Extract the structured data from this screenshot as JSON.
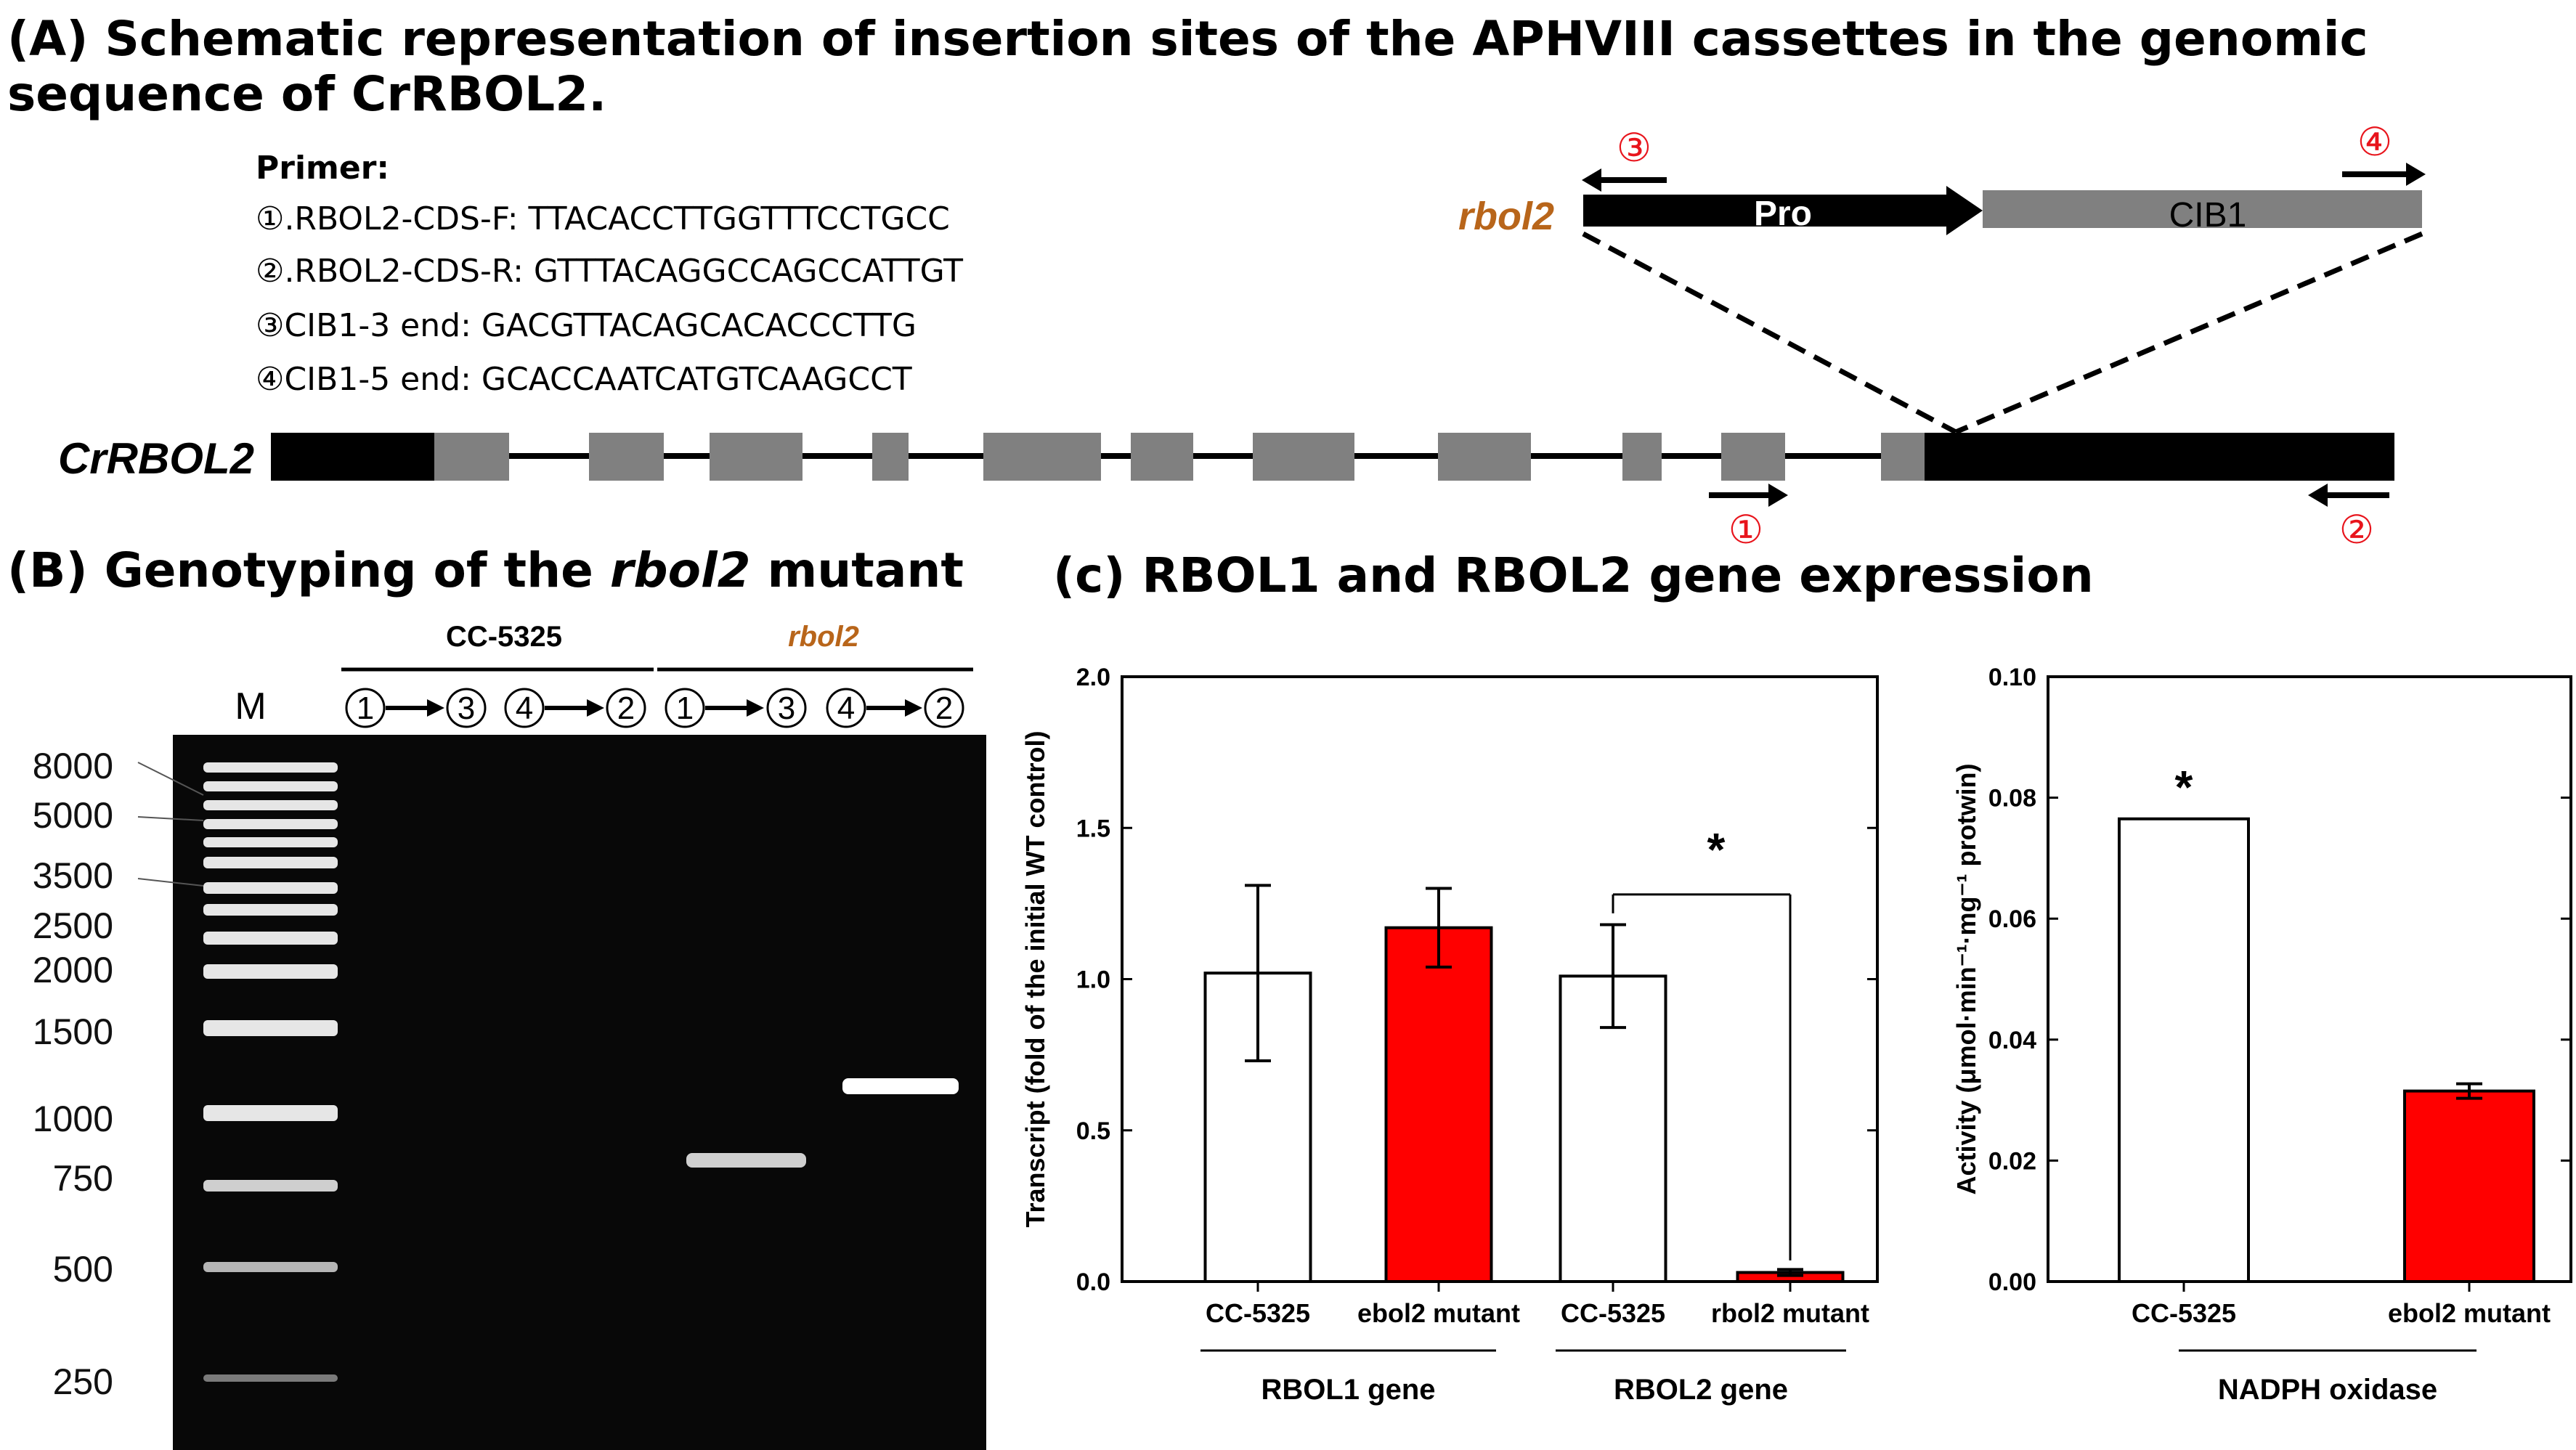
{
  "panel_a": {
    "title_line1": "(A) Schematic representation of insertion sites of the APHVIII cassettes in the genomic",
    "title_line2": "sequence of CrRBOL2.",
    "primer_heading": "Primer:",
    "primers": [
      "①.RBOL2-CDS-F: TTACACCTTGGTTTCCTGCC",
      "②.RBOL2-CDS-R: GTTTACAGGCCAGCCATTGT",
      "③CIB1-3 end: GACGTTACAGCACACCCTTG",
      "④CIB1-5 end: GCACCAATCATGTCAAGCCT"
    ],
    "gene_label": "CrRBOL2",
    "mutant_label": "rbol2",
    "cassette_pro": "Pro",
    "cassette_cib1": "CIB1",
    "marker_1": "①",
    "marker_2": "②",
    "marker_3": "③",
    "marker_4": "④",
    "colors": {
      "exon": "#808080",
      "utr": "#000000",
      "marker": "#e8141c",
      "mutant_label": "#b8651a"
    }
  },
  "panel_b": {
    "title_prefix": "(B) Genotyping of the ",
    "title_italic": "rbol2",
    "title_suffix": " mutant",
    "group_cc": "CC-5325",
    "group_rbol2": "rbol2",
    "lane_m": "M",
    "lane_numbers": [
      "1",
      "3",
      "4",
      "2",
      "1",
      "3",
      "4",
      "2"
    ],
    "ladder_labels": [
      "8000",
      "5000",
      "3500",
      "2500",
      "2000",
      "1500",
      "1000",
      "750",
      "500",
      "250"
    ],
    "bands": [
      {
        "lane": "1→3 (rbol2)",
        "size_bp": 850
      },
      {
        "lane": "4→2 (rbol2)",
        "size_bp": 1200
      }
    ]
  },
  "panel_c": {
    "title": "(c) RBOL1 and RBOL2 gene expression"
  },
  "chart_data": [
    {
      "type": "bar",
      "ylabel": "Transcript (fold of the initial WT control)",
      "ylim": [
        0,
        2.0
      ],
      "yticks": [
        "0.0",
        "0.5",
        "1.0",
        "1.5",
        "2.0"
      ],
      "categories": [
        "CC-5325",
        "ebol2 mutant",
        "CC-5325",
        "rbol2 mutant"
      ],
      "groups": [
        "RBOL1 gene",
        "RBOL2 gene"
      ],
      "values": [
        1.02,
        1.17,
        1.01,
        0.03
      ],
      "errors": [
        0.29,
        0.13,
        0.17,
        0.01
      ],
      "bar_colors": [
        "#ffffff",
        "#ff0000",
        "#ffffff",
        "#ff0000"
      ],
      "significance": "*"
    },
    {
      "type": "bar",
      "ylabel": "Activity (μmol·min⁻¹·mg⁻¹ protwin)",
      "ylim": [
        0,
        0.1
      ],
      "yticks": [
        "0.00",
        "0.02",
        "0.04",
        "0.06",
        "0.08",
        "0.10"
      ],
      "categories": [
        "CC-5325",
        "ebol2 mutant"
      ],
      "groups": [
        "NADPH oxidase"
      ],
      "values": [
        0.0765,
        0.0315
      ],
      "errors": [
        0,
        0.0012
      ],
      "bar_colors": [
        "#ffffff",
        "#ff0000"
      ],
      "significance": "*"
    }
  ]
}
